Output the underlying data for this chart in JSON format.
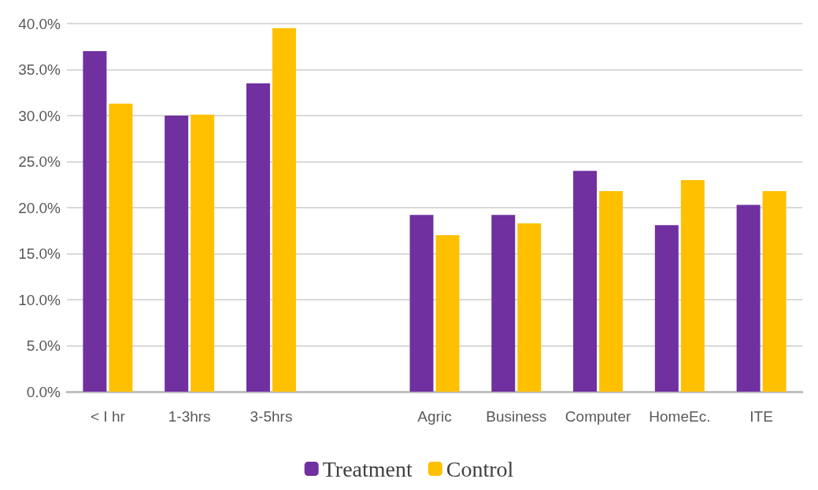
{
  "chart_data": {
    "type": "bar",
    "categories": [
      "< I hr",
      "1-3hrs",
      "3-5hrs",
      null,
      "Agric",
      "Business",
      "Computer",
      "HomeEc.",
      "ITE"
    ],
    "series": [
      {
        "name": "Treatment",
        "color": "#7030a0",
        "values": [
          37.0,
          30.0,
          33.5,
          null,
          19.2,
          19.2,
          24.0,
          18.1,
          20.3
        ]
      },
      {
        "name": "Control",
        "color": "#ffc000",
        "values": [
          31.3,
          30.1,
          39.5,
          null,
          17.0,
          18.3,
          21.8,
          23.0,
          21.8
        ]
      }
    ],
    "ylim": [
      0,
      40
    ],
    "yticks": [
      {
        "value": 0,
        "label": "0.0%"
      },
      {
        "value": 5,
        "label": "5.0%"
      },
      {
        "value": 10,
        "label": "10.0%"
      },
      {
        "value": 15,
        "label": "15.0%"
      },
      {
        "value": 20,
        "label": "20.0%"
      },
      {
        "value": 25,
        "label": "25.0%"
      },
      {
        "value": 30,
        "label": "30.0%"
      },
      {
        "value": 35,
        "label": "35.0%"
      },
      {
        "value": 40,
        "label": "40.0%"
      }
    ],
    "grid": "y",
    "legend": "bottom"
  }
}
